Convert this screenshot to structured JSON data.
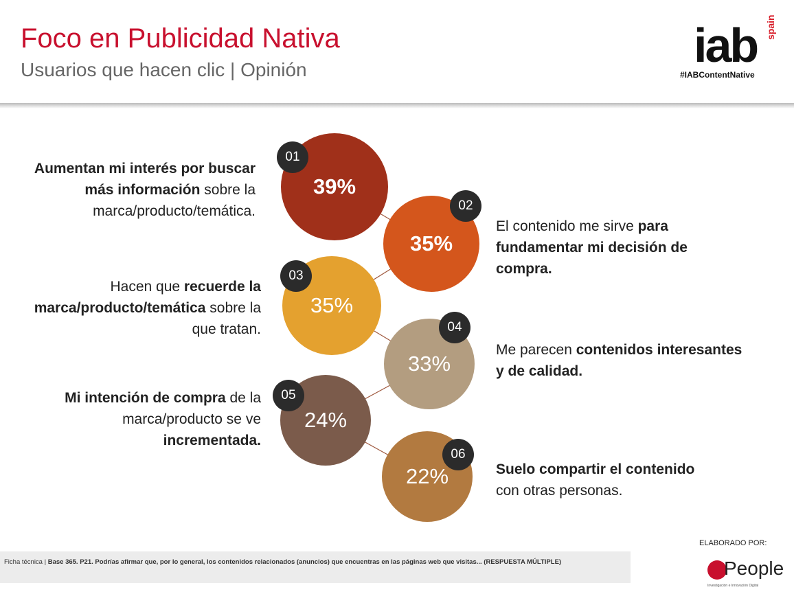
{
  "header": {
    "title": "Foco en Publicidad Nativa",
    "subtitle": "Usuarios que hacen clic | Opinión"
  },
  "logo": {
    "main": "iab",
    "sub": "spain",
    "hashtag": "#IABContentNative"
  },
  "items": [
    {
      "num": "01",
      "pct": "39%",
      "color": "#a0301a",
      "text": [
        {
          "t": "Aumentan mi interés por buscar más información",
          "b": true
        },
        {
          "t": " sobre la marca/producto/temática.",
          "b": false
        }
      ]
    },
    {
      "num": "02",
      "pct": "35%",
      "color": "#d4561c",
      "text": [
        {
          "t": "El contenido me sirve ",
          "b": false
        },
        {
          "t": "para fundamentar mi decisión de compra.",
          "b": true
        }
      ]
    },
    {
      "num": "03",
      "pct": "35%",
      "color": "#e4a12f",
      "text": [
        {
          "t": "Hacen que ",
          "b": false
        },
        {
          "t": "recuerde la marca/producto/temática",
          "b": true
        },
        {
          "t": " sobre la que tratan.",
          "b": false
        }
      ]
    },
    {
      "num": "04",
      "pct": "33%",
      "color": "#b39d80",
      "text": [
        {
          "t": "Me parecen ",
          "b": false
        },
        {
          "t": "contenidos interesantes y de calidad.",
          "b": true
        }
      ]
    },
    {
      "num": "05",
      "pct": "24%",
      "color": "#7b5b4b",
      "text": [
        {
          "t": "Mi intención de compra",
          "b": true
        },
        {
          "t": " de la marca/producto se ve ",
          "b": false
        },
        {
          "t": "incrementada.",
          "b": true
        }
      ]
    },
    {
      "num": "06",
      "pct": "22%",
      "color": "#b27a40",
      "text": [
        {
          "t": "Suelo compartir el contenido",
          "b": true
        },
        {
          "t": " con otras personas.",
          "b": false
        }
      ]
    }
  ],
  "footer": {
    "label": "Ficha técnica |",
    "text": "Base 365. P21. Podrías afirmar que, por lo general, los contenidos relacionados (anuncios) que encuentras en las páginas web que visitas... (RESPUESTA MÚLTIPLE)"
  },
  "credits": {
    "elaborado": "ELABORADO POR:",
    "brand": "People",
    "brand_sub": "Investigación e Innovación Digital"
  }
}
